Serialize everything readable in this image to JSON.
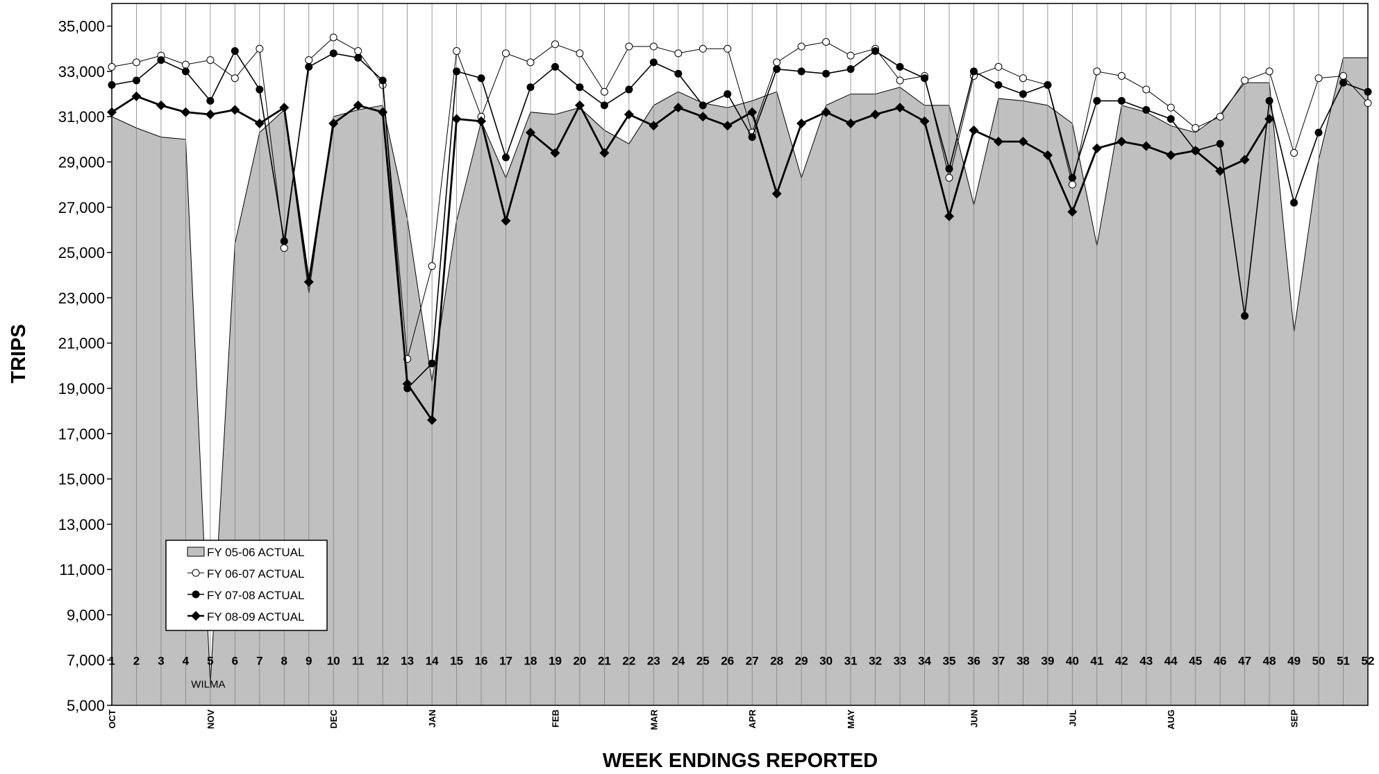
{
  "chart_data": {
    "type": "line",
    "title": "",
    "xlabel": "WEEK ENDINGS REPORTED",
    "ylabel": "TRIPS",
    "ylim": [
      5000,
      36000
    ],
    "yticks": [
      5000,
      7000,
      9000,
      11000,
      13000,
      15000,
      17000,
      19000,
      21000,
      23000,
      25000,
      27000,
      29000,
      31000,
      33000,
      35000
    ],
    "ytick_labels": [
      "5,000",
      "7,000",
      "9,000",
      "11,000",
      "13,000",
      "15,000",
      "17,000",
      "19,000",
      "21,000",
      "23,000",
      "25,000",
      "27,000",
      "29,000",
      "31,000",
      "33,000",
      "35,000"
    ],
    "x": [
      1,
      2,
      3,
      4,
      5,
      6,
      7,
      8,
      9,
      10,
      11,
      12,
      13,
      14,
      15,
      16,
      17,
      18,
      19,
      20,
      21,
      22,
      23,
      24,
      25,
      26,
      27,
      28,
      29,
      30,
      31,
      32,
      33,
      34,
      35,
      36,
      37,
      38,
      39,
      40,
      41,
      42,
      43,
      44,
      45,
      46,
      47,
      48,
      49,
      50,
      51,
      52
    ],
    "week_labels": [
      "1",
      "2",
      "3",
      "4",
      "5",
      "6",
      "7",
      "8",
      "9",
      "10",
      "11",
      "12",
      "13",
      "14",
      "15",
      "16",
      "17",
      "18",
      "19",
      "20",
      "21",
      "22",
      "23",
      "24",
      "25",
      "26",
      "27",
      "28",
      "29",
      "30",
      "31",
      "32",
      "33",
      "34",
      "35",
      "36",
      "37",
      "38",
      "39",
      "40",
      "41",
      "42",
      "43",
      "44",
      "45",
      "46",
      "47",
      "48",
      "49",
      "50",
      "51",
      "52"
    ],
    "months": [
      {
        "label": "OCT",
        "week": 1
      },
      {
        "label": "NOV",
        "week": 5
      },
      {
        "label": "DEC",
        "week": 10
      },
      {
        "label": "JAN",
        "week": 14
      },
      {
        "label": "FEB",
        "week": 19
      },
      {
        "label": "MAR",
        "week": 23
      },
      {
        "label": "APR",
        "week": 27
      },
      {
        "label": "MAY",
        "week": 31
      },
      {
        "label": "JUN",
        "week": 36
      },
      {
        "label": "JUL",
        "week": 40
      },
      {
        "label": "AUG",
        "week": 44
      },
      {
        "label": "SEP",
        "week": 49
      }
    ],
    "annotation": {
      "text": "WILMA",
      "week": 5
    },
    "grid": {
      "vertical": true,
      "horizontal": false
    },
    "legend": {
      "placement": "bottom-left"
    },
    "series": [
      {
        "name": "FY 05-06 ACTUAL",
        "style": "area",
        "color": "#c0c0c0",
        "values": [
          31000,
          30500,
          30100,
          30000,
          5900,
          25400,
          30300,
          31300,
          23200,
          31000,
          31300,
          31500,
          26500,
          19300,
          26400,
          30800,
          28300,
          31200,
          31100,
          31400,
          30400,
          29800,
          31500,
          32100,
          31600,
          31400,
          31700,
          32100,
          28300,
          31500,
          32000,
          32000,
          32300,
          31500,
          31500,
          27100,
          31800,
          31700,
          31500,
          30700,
          25300,
          31500,
          31200,
          30600,
          30300,
          31100,
          32500,
          32500,
          21500,
          29100,
          33600,
          33600
        ]
      },
      {
        "name": "FY 06-07 ACTUAL",
        "style": "line",
        "marker": "open-circle",
        "color": "#000000",
        "values": [
          33200,
          33400,
          33700,
          33300,
          33500,
          32700,
          34000,
          25200,
          33500,
          34500,
          33900,
          32400,
          20300,
          24400,
          33900,
          31000,
          33800,
          33400,
          34200,
          33800,
          32100,
          34100,
          34100,
          33800,
          34000,
          34000,
          30300,
          33400,
          34100,
          34300,
          33700,
          34000,
          32600,
          32800,
          28300,
          32800,
          33200,
          32700,
          32400,
          28000,
          33000,
          32800,
          32200,
          31400,
          30500,
          31000,
          32600,
          33000,
          29400,
          32700,
          32800,
          31600
        ]
      },
      {
        "name": "FY 07-08 ACTUAL",
        "style": "line",
        "marker": "filled-circle",
        "color": "#000000",
        "values": [
          32400,
          32600,
          33500,
          33000,
          31700,
          33900,
          32200,
          25500,
          33200,
          33800,
          33600,
          32600,
          19000,
          20100,
          33000,
          32700,
          29200,
          32300,
          33200,
          32300,
          31500,
          32200,
          33400,
          32900,
          31500,
          32000,
          30100,
          33100,
          33000,
          32900,
          33100,
          33900,
          33200,
          32700,
          28700,
          33000,
          32400,
          32000,
          32400,
          28300,
          31700,
          31700,
          31300,
          30900,
          29500,
          29800,
          22200,
          31700,
          27200,
          30300,
          32500,
          32100
        ]
      },
      {
        "name": "FY 08-09 ACTUAL",
        "style": "line",
        "marker": "filled-diamond",
        "color": "#000000",
        "values": [
          31200,
          31900,
          31500,
          31200,
          31100,
          31300,
          30700,
          31400,
          23700,
          30700,
          31500,
          31200,
          19200,
          17600,
          30900,
          30800,
          26400,
          30300,
          29400,
          31500,
          29400,
          31100,
          30600,
          31400,
          31000,
          30600,
          31200,
          27600,
          30700,
          31200,
          30700,
          31100,
          31400,
          30800,
          26600,
          30400,
          29900,
          29900,
          29300,
          26800,
          29600,
          29900,
          29700,
          29300,
          29500,
          28600,
          29100,
          30900,
          null,
          null,
          null,
          null
        ]
      }
    ]
  }
}
